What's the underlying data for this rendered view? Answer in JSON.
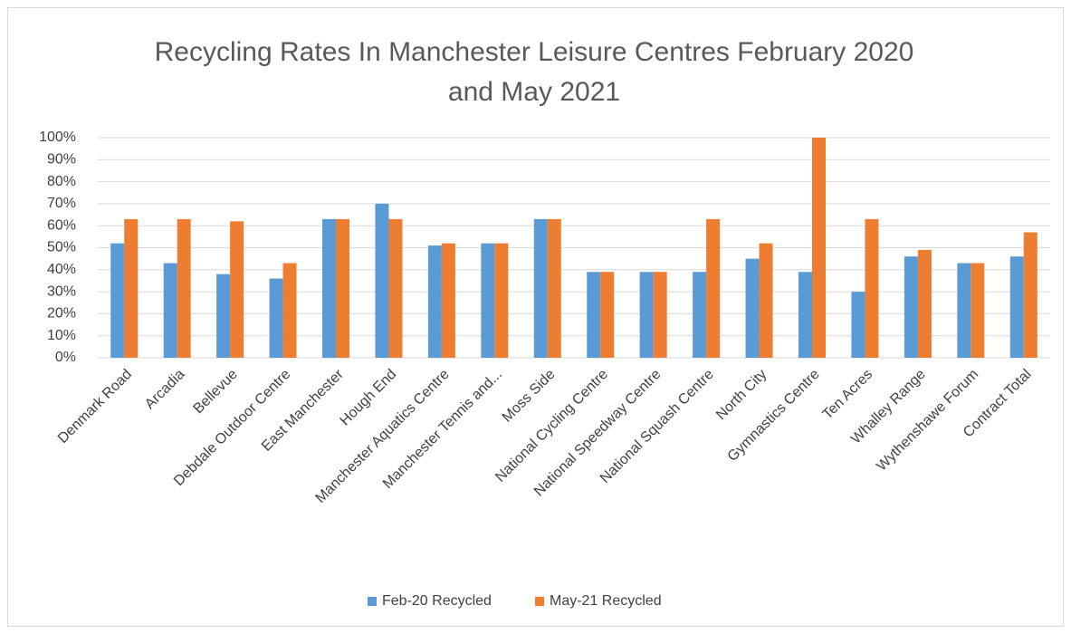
{
  "chart_data": {
    "type": "bar",
    "title": "Recycling Rates In Manchester Leisure Centres February 2020 and May 2021",
    "categories": [
      "Denmark Road",
      "Arcadia",
      "Bellevue",
      "Debdale Outdoor Centre",
      "East Manchester",
      "Hough End",
      "Manchester Aquatics Centre",
      "Manchester Tennis and...",
      "Moss Side",
      "National Cycling Centre",
      "National Speedway Centre",
      "National Squash Centre",
      "North City",
      "Gymnastics Centre",
      "Ten Acres",
      "Whalley Range",
      "Wythenshawe Forum",
      "Contract Total"
    ],
    "series": [
      {
        "name": "Feb-20 Recycled",
        "color": "#5b9bd5",
        "values": [
          52,
          43,
          38,
          36,
          63,
          70,
          51,
          52,
          63,
          39,
          39,
          39,
          45,
          39,
          30,
          46,
          43,
          46
        ]
      },
      {
        "name": "May-21 Recycled",
        "color": "#ed7d31",
        "values": [
          63,
          63,
          62,
          43,
          63,
          63,
          52,
          52,
          63,
          39,
          39,
          63,
          52,
          100,
          63,
          49,
          43,
          57
        ]
      }
    ],
    "ylim": [
      0,
      100
    ],
    "yticks": [
      {
        "value": 0,
        "label": "0%"
      },
      {
        "value": 10,
        "label": "10%"
      },
      {
        "value": 20,
        "label": "20%"
      },
      {
        "value": 30,
        "label": "30%"
      },
      {
        "value": 40,
        "label": "40%"
      },
      {
        "value": 50,
        "label": "50%"
      },
      {
        "value": 60,
        "label": "60%"
      },
      {
        "value": 70,
        "label": "70%"
      },
      {
        "value": 80,
        "label": "80%"
      },
      {
        "value": 90,
        "label": "90%"
      },
      {
        "value": 100,
        "label": "100%"
      }
    ],
    "grid": true,
    "legend": "bottom"
  }
}
